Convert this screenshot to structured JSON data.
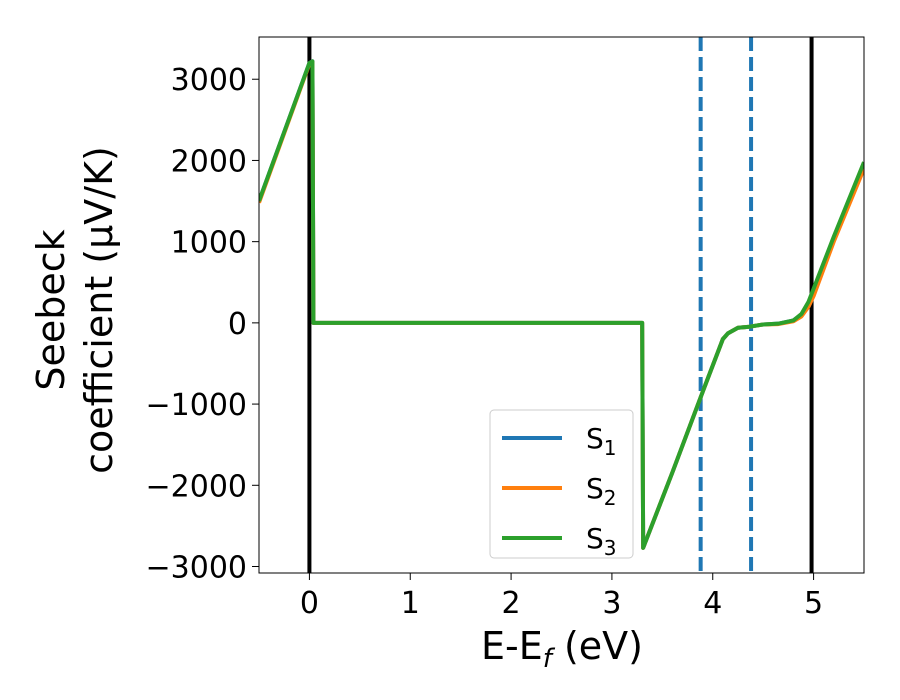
{
  "chart_data": {
    "type": "line",
    "xlabel": {
      "main": "E-E",
      "sub": "f",
      "unit": " (eV)"
    },
    "ylabel": {
      "line1": "Seebeck",
      "line2": "coefficient  (μV/K)"
    },
    "xlim": [
      -0.5,
      5.5
    ],
    "ylim": [
      -3080,
      3520
    ],
    "xticks": [
      0,
      1,
      2,
      3,
      4,
      5
    ],
    "xtick_labels": [
      "0",
      "1",
      "2",
      "3",
      "4",
      "5"
    ],
    "yticks": [
      3000,
      2000,
      1000,
      0,
      -1000,
      -2000,
      -3000
    ],
    "ytick_labels": [
      "3000",
      "2000",
      "1000",
      "0",
      "−1000",
      "−2000",
      "−3000"
    ],
    "grid": false,
    "legend_position": "lower-right",
    "series": [
      {
        "name": "S1",
        "legend_main": "S",
        "legend_sub": "1",
        "color": "#1f77b4",
        "x": [
          -0.5,
          0.0,
          0.03,
          0.04,
          1.0,
          2.0,
          3.0,
          3.3,
          3.31,
          3.6,
          3.9,
          4.1,
          4.15,
          4.25,
          4.35,
          4.5,
          4.65,
          4.8,
          4.88,
          4.95,
          5.0,
          5.2,
          5.5
        ],
        "y": [
          1500,
          3200,
          3220,
          0,
          0,
          0,
          0,
          0,
          -2770,
          -1840,
          -850,
          -200,
          -130,
          -60,
          -50,
          -20,
          -10,
          30,
          100,
          250,
          400,
          1050,
          1950
        ]
      },
      {
        "name": "S2",
        "legend_main": "S",
        "legend_sub": "2",
        "color": "#ff7f0e",
        "x": [
          -0.5,
          0.0,
          0.03,
          0.04,
          1.0,
          2.0,
          3.0,
          3.3,
          3.31,
          3.6,
          3.9,
          4.1,
          4.15,
          4.25,
          4.35,
          4.5,
          4.65,
          4.8,
          4.88,
          4.95,
          5.0,
          5.2,
          5.5
        ],
        "y": [
          1480,
          3190,
          3210,
          0,
          0,
          0,
          0,
          0,
          -2770,
          -1840,
          -850,
          -200,
          -130,
          -60,
          -50,
          -20,
          -15,
          20,
          80,
          200,
          330,
          1000,
          1900
        ]
      },
      {
        "name": "S3",
        "legend_main": "S",
        "legend_sub": "3",
        "color": "#2ca02c",
        "x": [
          -0.5,
          0.0,
          0.03,
          0.04,
          1.0,
          2.0,
          3.0,
          3.3,
          3.31,
          3.6,
          3.9,
          4.1,
          4.15,
          4.25,
          4.35,
          4.5,
          4.65,
          4.8,
          4.88,
          4.95,
          5.0,
          5.2,
          5.5
        ],
        "y": [
          1500,
          3200,
          3220,
          0,
          0,
          0,
          0,
          0,
          -2770,
          -1840,
          -850,
          -200,
          -130,
          -60,
          -50,
          -20,
          -10,
          30,
          110,
          260,
          420,
          1060,
          1980
        ]
      }
    ],
    "vertical_lines": [
      {
        "x": 0.0,
        "style": "solid",
        "color": "#000000"
      },
      {
        "x": 4.98,
        "style": "solid",
        "color": "#000000"
      },
      {
        "x": 3.88,
        "style": "dashed",
        "color": "#1f77b4"
      },
      {
        "x": 4.38,
        "style": "dashed",
        "color": "#1f77b4"
      }
    ]
  }
}
